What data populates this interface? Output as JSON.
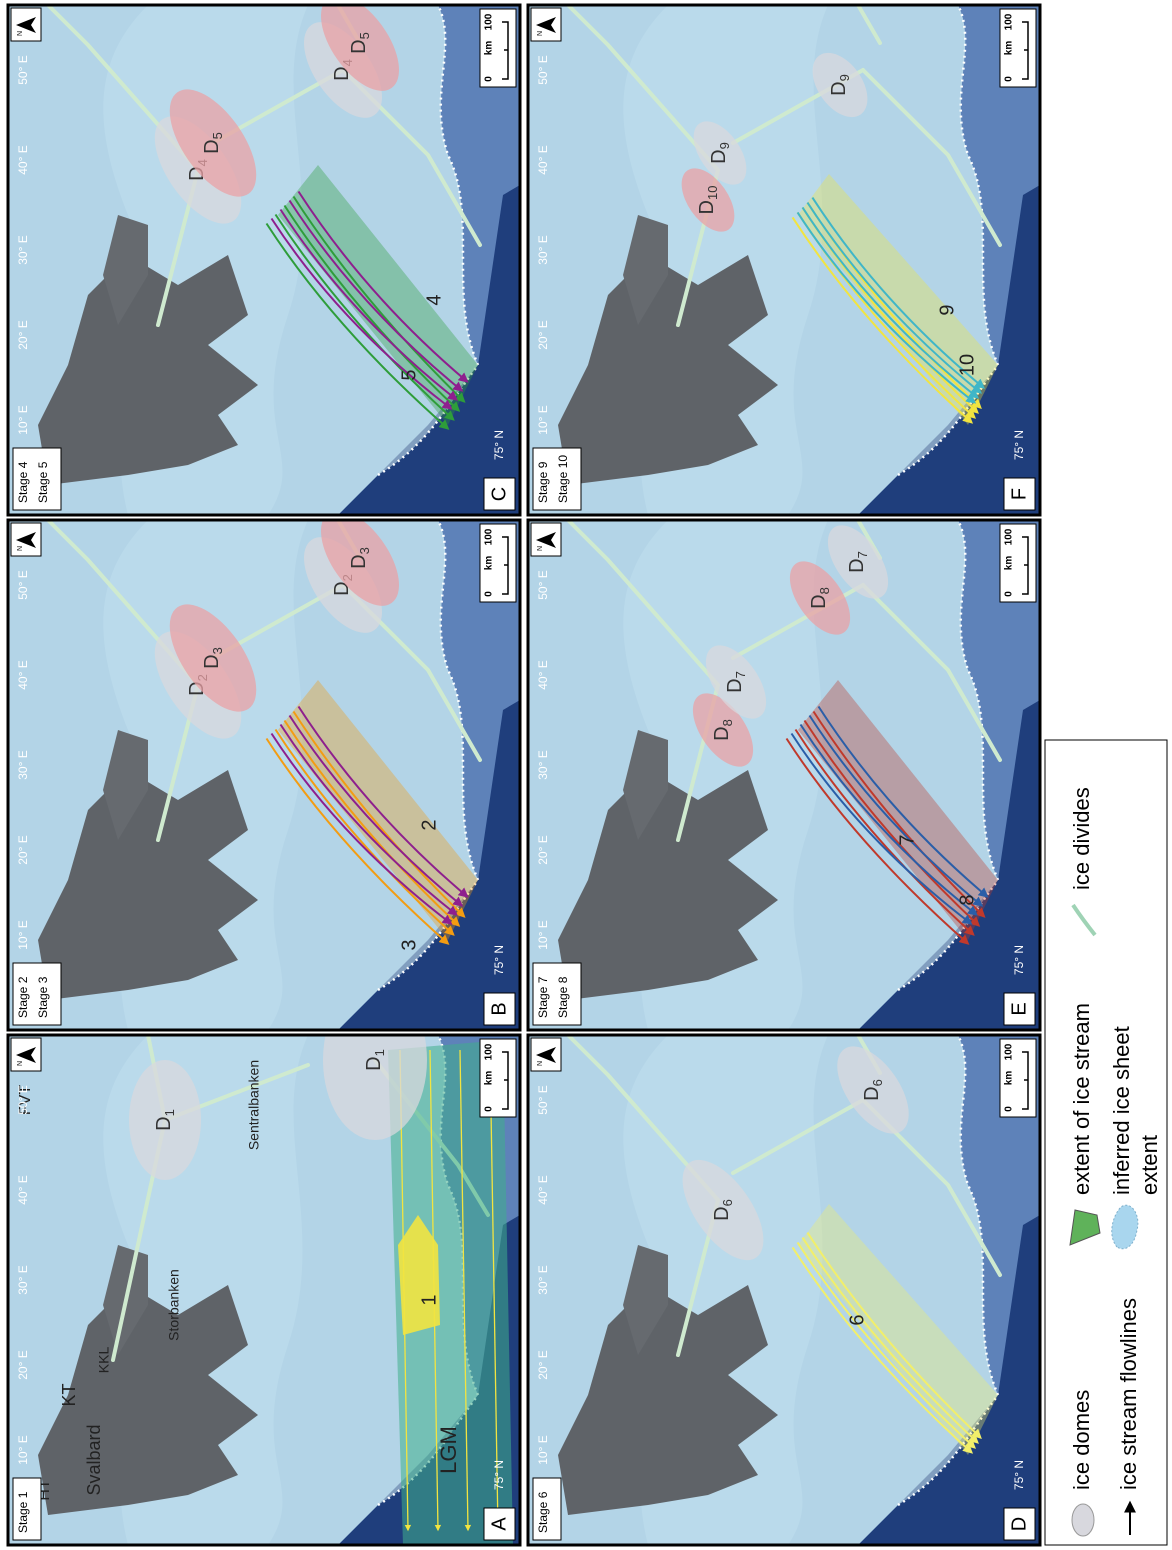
{
  "panels": [
    {
      "letter": "A",
      "stages": [
        "Stage 1"
      ],
      "domes": [
        {
          "letter": "D",
          "sub": "1"
        },
        {
          "letter": "D",
          "sub": "1"
        }
      ],
      "streams": [
        "1"
      ],
      "labels": [
        "LGM",
        "HT",
        "KT",
        "KKL",
        "FVT",
        "Svalbard",
        "Storbanken",
        "Sentralbanken"
      ]
    },
    {
      "letter": "B",
      "stages": [
        "Stage 2",
        "Stage 3"
      ],
      "domes": [
        {
          "letter": "D",
          "sub": "2"
        },
        {
          "letter": "D",
          "sub": "3"
        },
        {
          "letter": "D",
          "sub": "2"
        },
        {
          "letter": "D",
          "sub": "3"
        }
      ],
      "streams": [
        "2",
        "3"
      ]
    },
    {
      "letter": "C",
      "stages": [
        "Stage 4",
        "Stage 5"
      ],
      "domes": [
        {
          "letter": "D",
          "sub": "4"
        },
        {
          "letter": "D",
          "sub": "5"
        },
        {
          "letter": "D",
          "sub": "4"
        },
        {
          "letter": "D",
          "sub": "5"
        }
      ],
      "streams": [
        "4",
        "5"
      ]
    },
    {
      "letter": "D",
      "stages": [
        "Stage 6"
      ],
      "domes": [
        {
          "letter": "D",
          "sub": "6"
        },
        {
          "letter": "D",
          "sub": "6"
        }
      ],
      "streams": [
        "6"
      ]
    },
    {
      "letter": "E",
      "stages": [
        "Stage 7",
        "Stage 8"
      ],
      "domes": [
        {
          "letter": "D",
          "sub": "8"
        },
        {
          "letter": "D",
          "sub": "7"
        },
        {
          "letter": "D",
          "sub": "8"
        },
        {
          "letter": "D",
          "sub": "7"
        }
      ],
      "streams": [
        "7",
        "8"
      ]
    },
    {
      "letter": "F",
      "stages": [
        "Stage 9",
        "Stage 10"
      ],
      "domes": [
        {
          "letter": "D",
          "sub": "10"
        },
        {
          "letter": "D",
          "sub": "9"
        },
        {
          "letter": "D",
          "sub": "9"
        }
      ],
      "streams": [
        "9",
        "10"
      ]
    }
  ],
  "longitudes": [
    "10° E",
    "20° E",
    "30° E",
    "40° E",
    "50° E"
  ],
  "latitude": "75° N",
  "north": "N",
  "scale": {
    "start": "0",
    "unit": "km",
    "end": "100"
  },
  "legend": {
    "domes": "ice domes",
    "flowlines": "ice stream flowlines",
    "stream_extent": "extent of ice stream",
    "sheet_extent": [
      "inferred ice sheet",
      "extent"
    ],
    "divides": "ice divides"
  }
}
